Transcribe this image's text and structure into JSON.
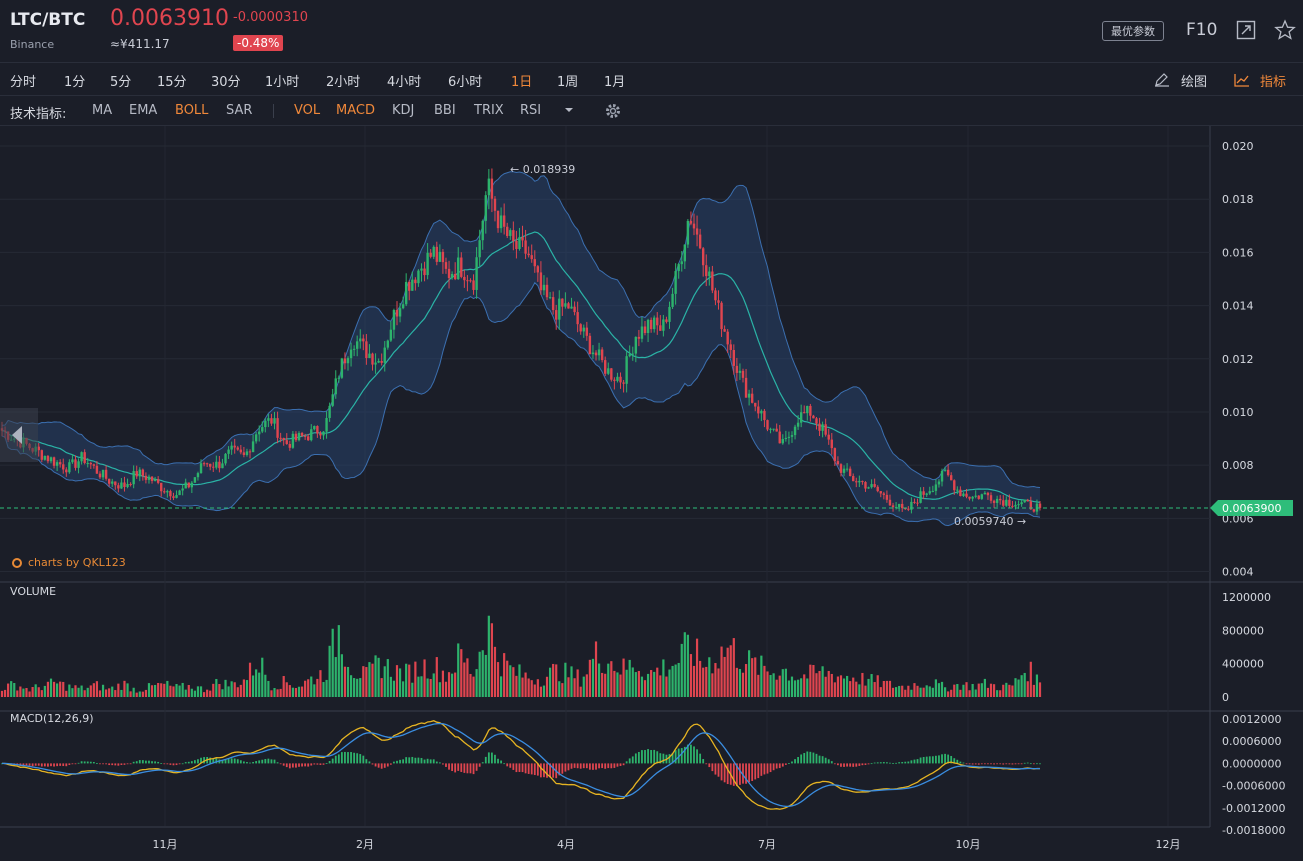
{
  "header": {
    "symbol": "LTC/BTC",
    "exchange": "Binance",
    "price": "0.0063910",
    "cny_price": "≈¥411.17",
    "change": "-0.0000310",
    "change_pct": "-0.48%",
    "best_params_label": "最优参数",
    "f10_label": "F10"
  },
  "timeframes": [
    "分时",
    "1分",
    "5分",
    "15分",
    "30分",
    "1小时",
    "2小时",
    "4小时",
    "6小时",
    "1日",
    "1周",
    "1月"
  ],
  "active_timeframe": "1日",
  "tools": {
    "draw_label": "绘图",
    "indicator_label": "指标"
  },
  "indicators": {
    "label": "技术指标:",
    "main": [
      "MA",
      "EMA",
      "BOLL",
      "SAR"
    ],
    "sub": [
      "VOL",
      "MACD",
      "KDJ",
      "BBI",
      "TRIX",
      "RSI"
    ],
    "active": [
      "BOLL",
      "VOL",
      "MACD"
    ]
  },
  "colors": {
    "up": "#2db36c",
    "down": "#e0454f",
    "accent": "#f0883a",
    "last_price": "#2ebd7a"
  },
  "chart_data": {
    "type": "candlestick",
    "price_ticks": [
      "0.020",
      "0.018",
      "0.016",
      "0.014",
      "0.012",
      "0.010",
      "0.008",
      "0.006",
      "0.004"
    ],
    "price_range": [
      0.004,
      0.02
    ],
    "max_label": "0.018939",
    "min_label": "0.0059740",
    "last_price_label": "0.0063900",
    "x_ticks": [
      "11月",
      "2月",
      "4月",
      "7月",
      "10月",
      "12月"
    ],
    "close_series": [
      0.0093,
      0.009,
      0.0087,
      0.0084,
      0.0081,
      0.0079,
      0.0083,
      0.0078,
      0.0074,
      0.0072,
      0.0077,
      0.0075,
      0.0071,
      0.0069,
      0.0073,
      0.0081,
      0.008,
      0.0085,
      0.0083,
      0.0094,
      0.0097,
      0.0088,
      0.009,
      0.0092,
      0.0095,
      0.0115,
      0.0128,
      0.0123,
      0.0119,
      0.0135,
      0.0148,
      0.0154,
      0.016,
      0.0152,
      0.0155,
      0.015,
      0.0185,
      0.017,
      0.0162,
      0.016,
      0.0145,
      0.0138,
      0.014,
      0.013,
      0.0122,
      0.0115,
      0.0112,
      0.0129,
      0.0133,
      0.0131,
      0.015,
      0.0175,
      0.016,
      0.014,
      0.0125,
      0.011,
      0.0102,
      0.0093,
      0.0087,
      0.0098,
      0.01,
      0.0092,
      0.008,
      0.0075,
      0.0073,
      0.007,
      0.0066,
      0.0062,
      0.0068,
      0.0072,
      0.0077,
      0.007,
      0.0068,
      0.0069,
      0.0067,
      0.0066,
      0.0065,
      0.0064
    ],
    "volume": {
      "label": "VOLUME",
      "ticks": [
        "1200000",
        "800000",
        "400000",
        "0"
      ],
      "range": [
        0,
        1200000
      ],
      "values": [
        110000,
        150000,
        90000,
        130000,
        170000,
        120000,
        100000,
        140000,
        90000,
        160000,
        80000,
        120000,
        150000,
        110000,
        130000,
        90000,
        170000,
        150000,
        200000,
        450000,
        140000,
        180000,
        130000,
        220000,
        300000,
        820000,
        330000,
        250000,
        410000,
        320000,
        280000,
        350000,
        380000,
        260000,
        500000,
        280000,
        900000,
        440000,
        300000,
        240000,
        220000,
        310000,
        280000,
        220000,
        500000,
        450000,
        330000,
        400000,
        270000,
        350000,
        410000,
        610000,
        390000,
        480000,
        600000,
        440000,
        370000,
        300000,
        330000,
        240000,
        270000,
        300000,
        260000,
        240000,
        210000,
        180000,
        140000,
        120000,
        160000,
        170000,
        110000,
        150000,
        130000,
        160000,
        120000,
        140000,
        350000,
        170000
      ]
    },
    "macd": {
      "label": "MACD(12,26,9)",
      "ticks": [
        "0.0012000",
        "0.0006000",
        "0.0000000",
        "-0.0006000",
        "-0.0012000",
        "-0.0018000"
      ],
      "range": [
        -0.0018,
        0.0012
      ]
    }
  },
  "brand": "charts by QKL123"
}
